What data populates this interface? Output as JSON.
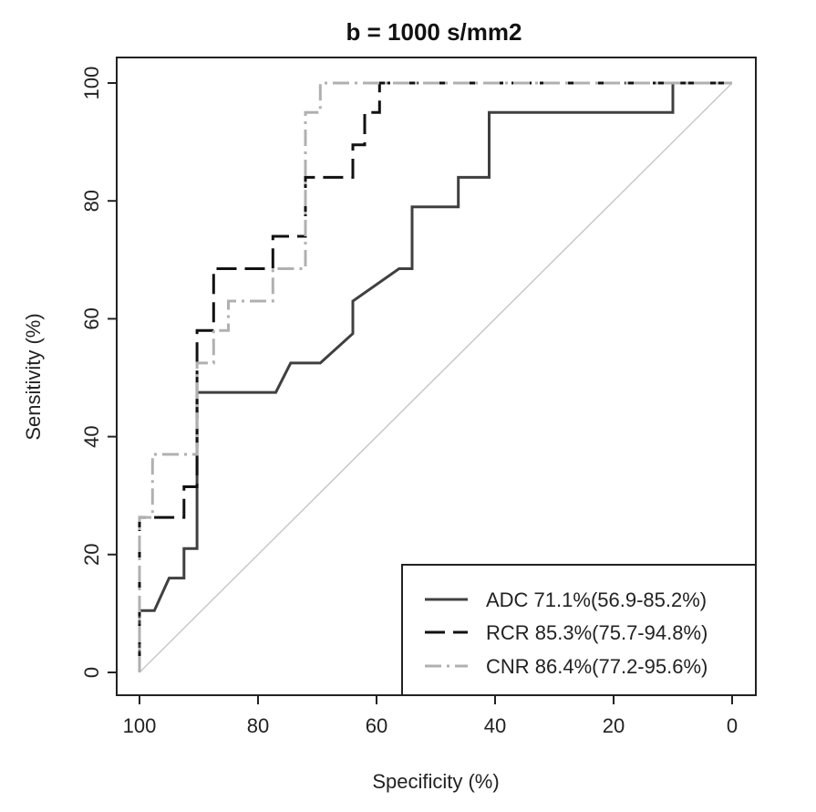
{
  "chart_data": {
    "type": "line",
    "title": "b = 1000 s/mm2",
    "xlabel": "Specificity (%)",
    "ylabel": "Sensitivity (%)",
    "xlim": [
      100,
      0
    ],
    "ylim": [
      0,
      100
    ],
    "xticks": [
      100,
      80,
      60,
      40,
      20,
      0
    ],
    "yticks": [
      0,
      20,
      40,
      60,
      80,
      100
    ],
    "xtick_labels": [
      "100",
      "80",
      "60",
      "40",
      "20",
      "0"
    ],
    "ytick_labels": [
      "0",
      "20",
      "40",
      "60",
      "80",
      "100"
    ],
    "legend_position": "bottom-right",
    "reference_line": {
      "from": [
        100,
        0
      ],
      "to": [
        0,
        100
      ],
      "color": "#c8c8c8"
    },
    "series": [
      {
        "name": "ADC 71.1%(56.9-85.2%)",
        "style": "solid",
        "color": "#404040",
        "points": [
          [
            100,
            0
          ],
          [
            100,
            10.5
          ],
          [
            97.5,
            10.5
          ],
          [
            95,
            16
          ],
          [
            92.5,
            16
          ],
          [
            92.5,
            21
          ],
          [
            90.3,
            21
          ],
          [
            90.3,
            47.5
          ],
          [
            77,
            47.5
          ],
          [
            74.5,
            52.5
          ],
          [
            69.5,
            52.5
          ],
          [
            64,
            57.5
          ],
          [
            64,
            63
          ],
          [
            56.2,
            68.5
          ],
          [
            54,
            68.5
          ],
          [
            54,
            79
          ],
          [
            46.2,
            79
          ],
          [
            46.2,
            84
          ],
          [
            41,
            84
          ],
          [
            41,
            95
          ],
          [
            10,
            95
          ],
          [
            10,
            100
          ],
          [
            0,
            100
          ]
        ]
      },
      {
        "name": "RCR 85.3%(75.7-94.8%)",
        "style": "dashed",
        "color": "#111111",
        "points": [
          [
            100,
            0
          ],
          [
            100,
            26.3
          ],
          [
            92.5,
            26.3
          ],
          [
            92.5,
            31.5
          ],
          [
            90.3,
            31.5
          ],
          [
            90.3,
            58
          ],
          [
            87.5,
            58
          ],
          [
            87.5,
            68.5
          ],
          [
            77.5,
            68.5
          ],
          [
            77.5,
            74
          ],
          [
            72,
            74
          ],
          [
            72,
            84
          ],
          [
            64,
            84
          ],
          [
            64,
            89.5
          ],
          [
            62,
            89.5
          ],
          [
            62,
            95
          ],
          [
            59.5,
            95
          ],
          [
            59.5,
            100
          ],
          [
            0,
            100
          ]
        ]
      },
      {
        "name": "CNR 86.4%(77.2-95.6%)",
        "style": "dashdot",
        "color": "#b0b0b0",
        "points": [
          [
            100,
            0
          ],
          [
            100,
            26.3
          ],
          [
            97.8,
            26.3
          ],
          [
            97.8,
            37
          ],
          [
            90.3,
            37
          ],
          [
            90.3,
            52.5
          ],
          [
            87.5,
            52.5
          ],
          [
            87.5,
            58
          ],
          [
            85,
            58
          ],
          [
            85,
            63
          ],
          [
            77.5,
            63
          ],
          [
            77.5,
            68.5
          ],
          [
            72,
            68.5
          ],
          [
            72,
            95
          ],
          [
            69.5,
            95
          ],
          [
            69.5,
            100
          ],
          [
            0,
            100
          ]
        ]
      }
    ]
  }
}
